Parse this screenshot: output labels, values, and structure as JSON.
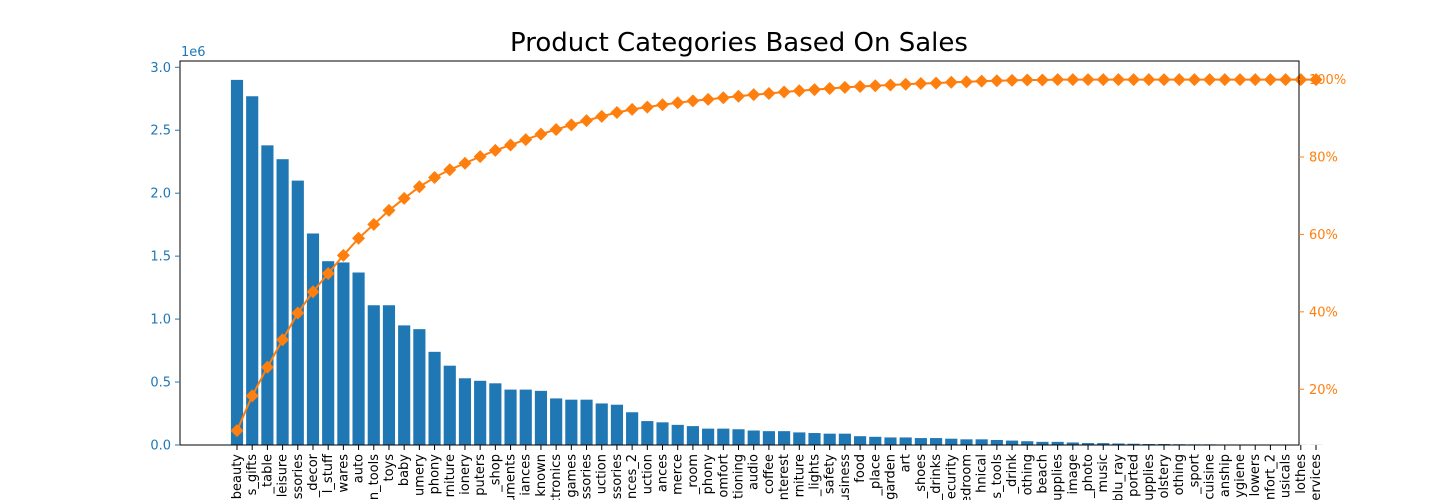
{
  "chart_data": {
    "type": "bar",
    "title": "Product Categories Based On Sales",
    "y_offset_label": "1e6",
    "categories": [
      "beauty",
      "s_gifts",
      "_table",
      "leisure",
      "essories",
      "_decor",
      "l_stuff",
      "wares",
      "auto",
      "n_tools",
      "toys",
      "baby",
      "umery",
      "phony",
      "rniture",
      "ionery",
      "puters",
      "_shop",
      "uments",
      "iances",
      "known",
      "ctronics",
      "games",
      "essories",
      "uction",
      "essories",
      "nces_2",
      "uction",
      "ances",
      "merce",
      "_room",
      "phony",
      "omfort",
      "tioning",
      "audio",
      "coffee",
      "nterest",
      "rniture",
      "_lights",
      "safety",
      "usiness",
      "food",
      "_place",
      "garden",
      "art",
      "_shoes",
      "_drinks",
      "ecurity",
      "edroom",
      "hnical",
      "s_tools",
      "_drink",
      "othing",
      "beach",
      "upplies",
      "image",
      "_photo",
      "music",
      "blu_ray",
      "ported",
      "upplies",
      "olstery",
      "othing",
      "_sport",
      "cuisine",
      "anship",
      "ygiene",
      "lowers",
      "nfort_2",
      "usicals",
      "lothes",
      "ervices"
    ],
    "series": [
      {
        "kind": "bar",
        "color": "#1f77b4",
        "values": [
          2.9,
          2.77,
          2.38,
          2.27,
          2.1,
          1.68,
          1.46,
          1.45,
          1.37,
          1.11,
          1.11,
          0.95,
          0.92,
          0.74,
          0.63,
          0.53,
          0.51,
          0.49,
          0.44,
          0.44,
          0.43,
          0.37,
          0.36,
          0.36,
          0.33,
          0.32,
          0.26,
          0.19,
          0.18,
          0.16,
          0.15,
          0.13,
          0.13,
          0.125,
          0.115,
          0.11,
          0.11,
          0.1,
          0.095,
          0.09,
          0.09,
          0.07,
          0.065,
          0.06,
          0.06,
          0.055,
          0.055,
          0.05,
          0.045,
          0.045,
          0.04,
          0.035,
          0.03,
          0.025,
          0.025,
          0.02,
          0.015,
          0.015,
          0.012,
          0.01,
          0.008,
          0.008,
          0.006,
          0.005,
          0.005,
          0.004,
          0.003,
          0.003,
          0.002,
          0.002,
          0.001,
          0.001
        ]
      },
      {
        "kind": "line",
        "axis": "right",
        "color": "#ff7f0e",
        "marker": "diamond",
        "values": [
          9.3,
          18.3,
          25.7,
          32.8,
          39.7,
          45.2,
          49.9,
          54.6,
          59.0,
          62.6,
          66.2,
          69.3,
          72.3,
          74.7,
          76.7,
          78.4,
          80.1,
          81.7,
          83.1,
          84.5,
          85.9,
          87.1,
          88.3,
          89.4,
          90.5,
          91.5,
          92.3,
          92.9,
          93.5,
          94.0,
          94.5,
          94.9,
          95.3,
          95.7,
          96.1,
          96.4,
          96.8,
          97.1,
          97.4,
          97.7,
          98.0,
          98.2,
          98.4,
          98.6,
          98.8,
          99.0,
          99.1,
          99.3,
          99.4,
          99.6,
          99.7,
          99.8,
          99.9,
          99.9,
          100,
          100,
          100,
          100,
          100,
          100,
          100,
          100,
          100,
          100,
          100,
          100,
          100,
          100,
          100,
          100,
          100,
          100
        ]
      }
    ],
    "ylim_left": [
      0,
      3.05
    ],
    "ylim_right": [
      5.6,
      104.8
    ],
    "left_ticks": [
      "0.0",
      "0.5",
      "1.0",
      "1.5",
      "2.0",
      "2.5",
      "3.0"
    ],
    "right_ticks": [
      "20%",
      "40%",
      "60%",
      "80%",
      "100%"
    ],
    "left_axis_color": "#1f77b4",
    "right_axis_color": "#ff7f0e",
    "grid": false,
    "legend": "none"
  }
}
